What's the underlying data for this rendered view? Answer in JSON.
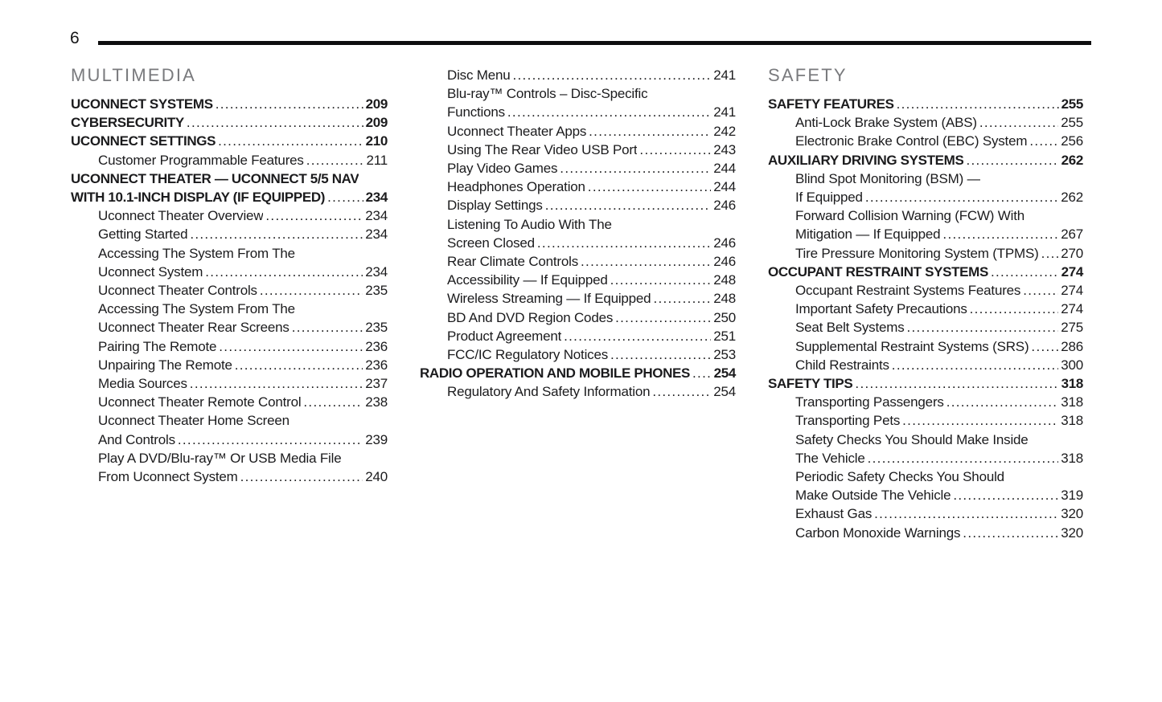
{
  "header": {
    "page_number": "6"
  },
  "columns": [
    {
      "heading": "MULTIMEDIA",
      "entries": [
        {
          "text": "UCONNECT SYSTEMS",
          "page": "209",
          "bold": true,
          "indent": 0
        },
        {
          "text": "CYBERSECURITY",
          "page": "209",
          "bold": true,
          "indent": 0
        },
        {
          "text": "UCONNECT SETTINGS",
          "page": "210",
          "bold": true,
          "indent": 0
        },
        {
          "text": "Customer Programmable Features",
          "page": "211",
          "bold": false,
          "indent": 1
        },
        {
          "text": "UCONNECT THEATER — UCONNECT 5/5 NAV",
          "page": null,
          "bold": true,
          "indent": 0
        },
        {
          "text": "WITH 10.1-INCH DISPLAY (IF EQUIPPED)",
          "page": "234",
          "bold": true,
          "indent": 0
        },
        {
          "text": "Uconnect Theater Overview",
          "page": "234",
          "bold": false,
          "indent": 1
        },
        {
          "text": "Getting Started",
          "page": "234",
          "bold": false,
          "indent": 1
        },
        {
          "text": "Accessing The System From The",
          "page": null,
          "bold": false,
          "indent": 1
        },
        {
          "text": "Uconnect System",
          "page": "234",
          "bold": false,
          "indent": 1
        },
        {
          "text": "Uconnect Theater Controls",
          "page": "235",
          "bold": false,
          "indent": 1
        },
        {
          "text": "Accessing The System From The",
          "page": null,
          "bold": false,
          "indent": 1
        },
        {
          "text": "Uconnect Theater Rear Screens",
          "page": "235",
          "bold": false,
          "indent": 1
        },
        {
          "text": "Pairing The Remote",
          "page": "236",
          "bold": false,
          "indent": 1
        },
        {
          "text": "Unpairing The Remote",
          "page": "236",
          "bold": false,
          "indent": 1
        },
        {
          "text": "Media Sources",
          "page": "237",
          "bold": false,
          "indent": 1
        },
        {
          "text": "Uconnect Theater Remote Control",
          "page": "238",
          "bold": false,
          "indent": 1
        },
        {
          "text": "Uconnect Theater Home Screen",
          "page": null,
          "bold": false,
          "indent": 1
        },
        {
          "text": "And Controls",
          "page": "239",
          "bold": false,
          "indent": 1
        },
        {
          "text": "Play A DVD/Blu-ray™ Or USB Media File",
          "page": null,
          "bold": false,
          "indent": 1
        },
        {
          "text": "From Uconnect System",
          "page": "240",
          "bold": false,
          "indent": 1
        }
      ]
    },
    {
      "heading": null,
      "entries": [
        {
          "text": "Disc Menu",
          "page": "241",
          "bold": false,
          "indent": 1
        },
        {
          "text": "Blu-ray™ Controls – Disc-Specific",
          "page": null,
          "bold": false,
          "indent": 1
        },
        {
          "text": "Functions",
          "page": "241",
          "bold": false,
          "indent": 1
        },
        {
          "text": "Uconnect Theater Apps",
          "page": "242",
          "bold": false,
          "indent": 1
        },
        {
          "text": "Using The Rear Video USB Port",
          "page": "243",
          "bold": false,
          "indent": 1
        },
        {
          "text": "Play Video Games",
          "page": "244",
          "bold": false,
          "indent": 1
        },
        {
          "text": "Headphones Operation",
          "page": "244",
          "bold": false,
          "indent": 1
        },
        {
          "text": "Display Settings",
          "page": "246",
          "bold": false,
          "indent": 1
        },
        {
          "text": "Listening To Audio With The",
          "page": null,
          "bold": false,
          "indent": 1
        },
        {
          "text": "Screen Closed",
          "page": "246",
          "bold": false,
          "indent": 1
        },
        {
          "text": "Rear Climate Controls",
          "page": "246",
          "bold": false,
          "indent": 1
        },
        {
          "text": "Accessibility — If Equipped",
          "page": "248",
          "bold": false,
          "indent": 1
        },
        {
          "text": "Wireless Streaming — If Equipped",
          "page": "248",
          "bold": false,
          "indent": 1
        },
        {
          "text": "BD And DVD Region Codes",
          "page": "250",
          "bold": false,
          "indent": 1
        },
        {
          "text": "Product Agreement",
          "page": "251",
          "bold": false,
          "indent": 1
        },
        {
          "text": "FCC/IC Regulatory Notices",
          "page": "253",
          "bold": false,
          "indent": 1
        },
        {
          "text": "RADIO OPERATION AND MOBILE PHONES",
          "page": "254",
          "bold": true,
          "indent": 0
        },
        {
          "text": "Regulatory And Safety Information",
          "page": "254",
          "bold": false,
          "indent": 1
        }
      ]
    },
    {
      "heading": "SAFETY",
      "entries": [
        {
          "text": "SAFETY FEATURES",
          "page": "255",
          "bold": true,
          "indent": 0
        },
        {
          "text": "Anti-Lock Brake System (ABS)",
          "page": "255",
          "bold": false,
          "indent": 1
        },
        {
          "text": "Electronic Brake Control (EBC) System",
          "page": "256",
          "bold": false,
          "indent": 1
        },
        {
          "text": "AUXILIARY DRIVING SYSTEMS",
          "page": "262",
          "bold": true,
          "indent": 0
        },
        {
          "text": "Blind Spot Monitoring (BSM) —",
          "page": null,
          "bold": false,
          "indent": 1
        },
        {
          "text": "If Equipped",
          "page": "262",
          "bold": false,
          "indent": 1
        },
        {
          "text": "Forward Collision Warning (FCW) With",
          "page": null,
          "bold": false,
          "indent": 1
        },
        {
          "text": "Mitigation — If Equipped",
          "page": "267",
          "bold": false,
          "indent": 1
        },
        {
          "text": "Tire Pressure Monitoring System (TPMS)",
          "page": "270",
          "bold": false,
          "indent": 1
        },
        {
          "text": "OCCUPANT RESTRAINT SYSTEMS",
          "page": "274",
          "bold": true,
          "indent": 0
        },
        {
          "text": "Occupant Restraint Systems Features",
          "page": "274",
          "bold": false,
          "indent": 1
        },
        {
          "text": "Important Safety Precautions",
          "page": "274",
          "bold": false,
          "indent": 1
        },
        {
          "text": "Seat Belt Systems",
          "page": "275",
          "bold": false,
          "indent": 1
        },
        {
          "text": "Supplemental Restraint Systems (SRS)",
          "page": "286",
          "bold": false,
          "indent": 1
        },
        {
          "text": "Child Restraints",
          "page": "300",
          "bold": false,
          "indent": 1
        },
        {
          "text": "SAFETY TIPS",
          "page": "318",
          "bold": true,
          "indent": 0
        },
        {
          "text": "Transporting Passengers",
          "page": "318",
          "bold": false,
          "indent": 1
        },
        {
          "text": "Transporting Pets",
          "page": "318",
          "bold": false,
          "indent": 1
        },
        {
          "text": "Safety Checks You Should Make Inside",
          "page": null,
          "bold": false,
          "indent": 1
        },
        {
          "text": "The Vehicle",
          "page": "318",
          "bold": false,
          "indent": 1
        },
        {
          "text": "Periodic Safety Checks You Should",
          "page": null,
          "bold": false,
          "indent": 1
        },
        {
          "text": "Make Outside The Vehicle",
          "page": "319",
          "bold": false,
          "indent": 1
        },
        {
          "text": "Exhaust Gas",
          "page": "320",
          "bold": false,
          "indent": 1
        },
        {
          "text": "Carbon Monoxide Warnings",
          "page": "320",
          "bold": false,
          "indent": 1
        }
      ]
    }
  ]
}
